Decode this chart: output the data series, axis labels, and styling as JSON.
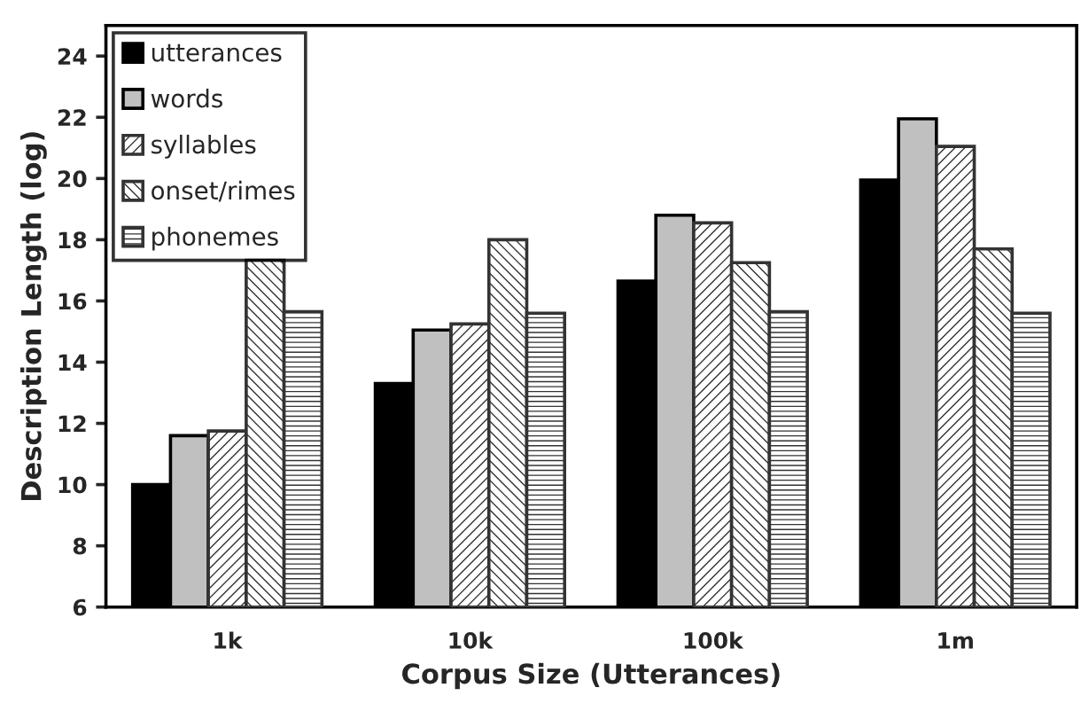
{
  "chart_data": {
    "type": "bar",
    "xlabel": "Corpus Size (Utterances)",
    "ylabel": "Description Length (log)",
    "categories": [
      "1k",
      "10k",
      "100k",
      "1m"
    ],
    "series": [
      {
        "name": "utterances",
        "color": "#000000",
        "values": [
          10.0,
          13.3,
          16.65,
          19.95
        ]
      },
      {
        "name": "words",
        "color": "#c0c0c0",
        "values": [
          11.6,
          15.05,
          18.8,
          21.95
        ]
      },
      {
        "name": "syllables",
        "color": "#333333",
        "values": [
          11.75,
          15.25,
          18.55,
          21.05
        ]
      },
      {
        "name": "onset/rimes",
        "color": "#333333",
        "values": [
          17.35,
          18.0,
          17.25,
          17.7
        ]
      },
      {
        "name": "phonemes",
        "color": "#333333",
        "values": [
          15.65,
          15.6,
          15.65,
          15.6
        ]
      }
    ],
    "ylim": [
      6,
      25
    ],
    "yticks": [
      6,
      8,
      10,
      12,
      14,
      16,
      18,
      20,
      22,
      24
    ],
    "grid": false,
    "legend": "top left"
  }
}
